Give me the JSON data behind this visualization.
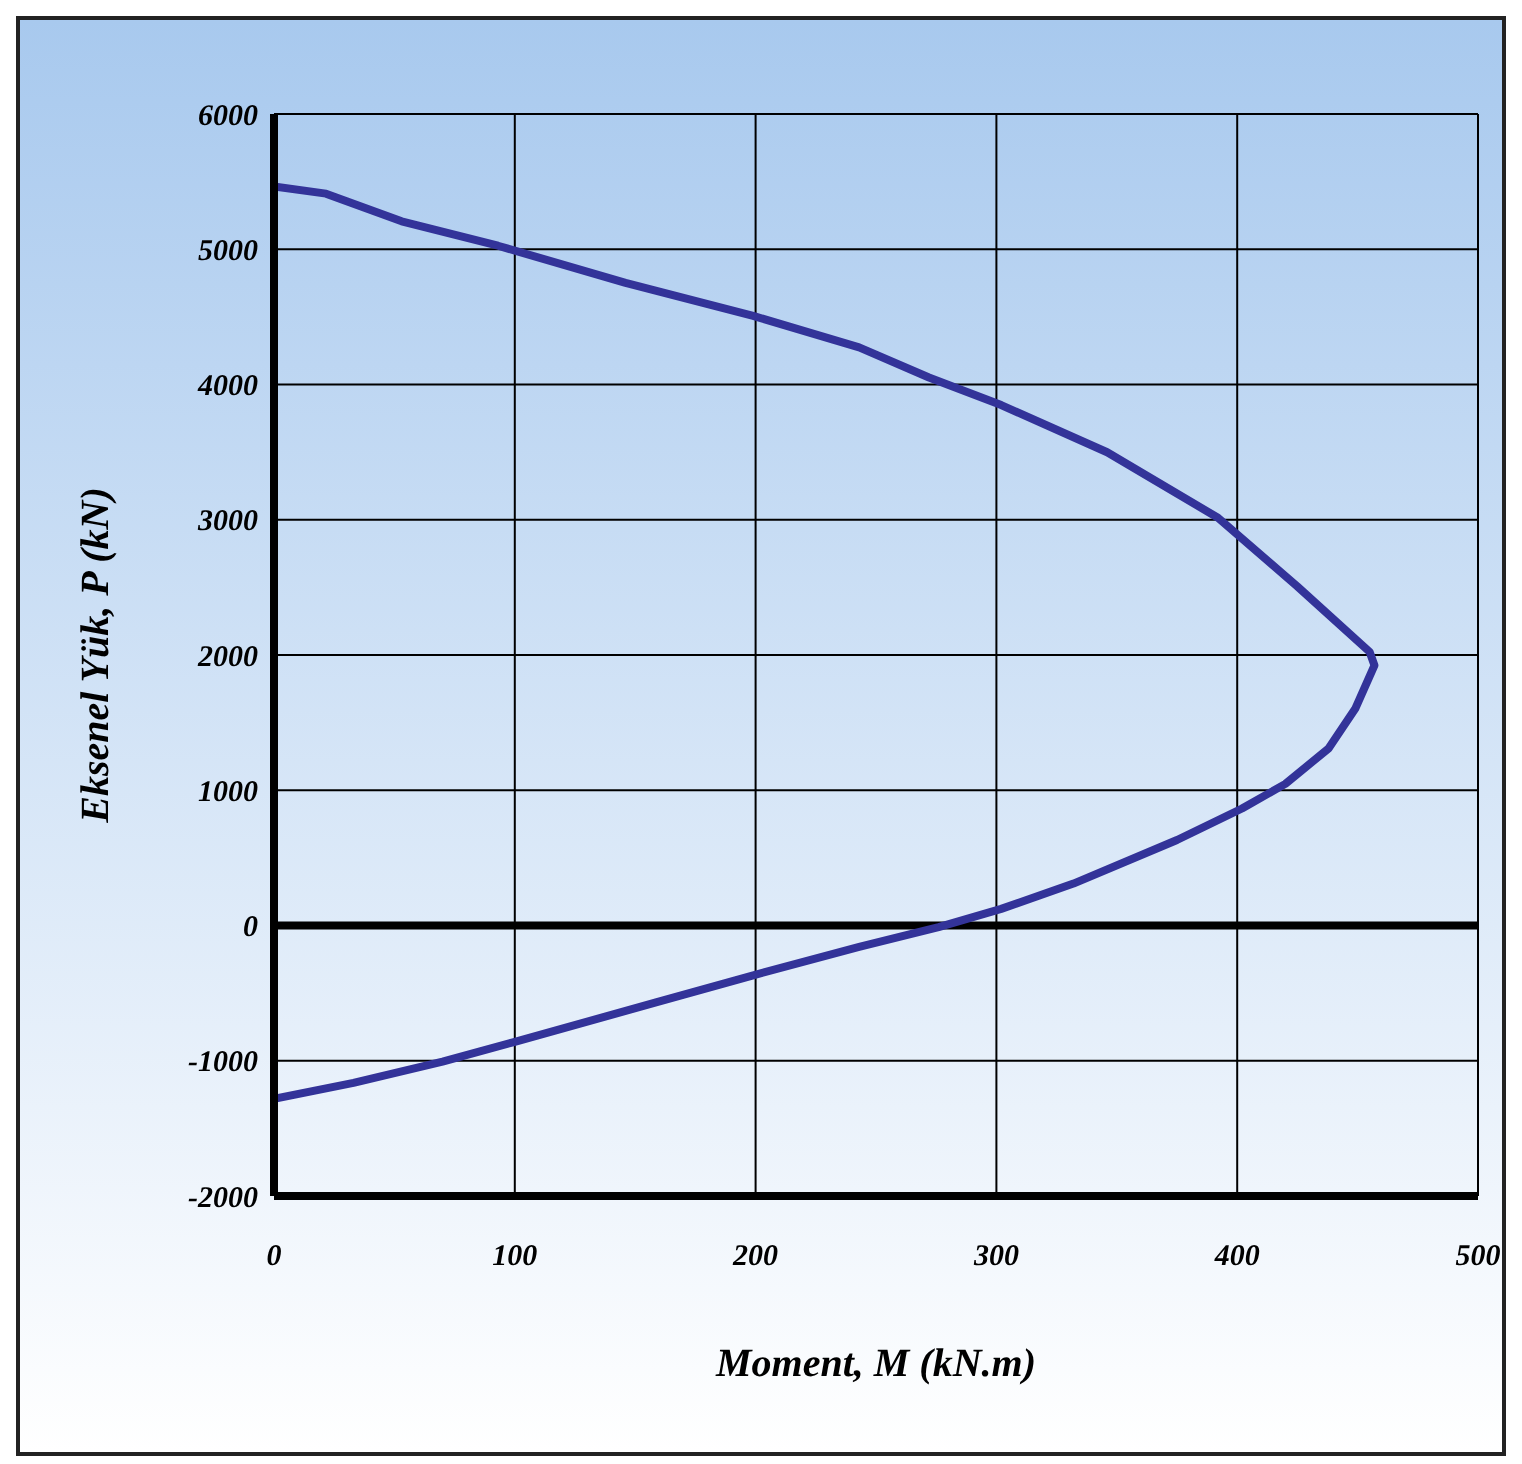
{
  "chart_data": {
    "type": "line",
    "xlabel": "Moment, M (kN.m)",
    "ylabel": "Eksenel Yük, P (kN)",
    "x": [
      0,
      21.6,
      53,
      93,
      146,
      199,
      243,
      272,
      302,
      346,
      392,
      425,
      455,
      457,
      449,
      438,
      420,
      402,
      375,
      332,
      302,
      276,
      243,
      199,
      159,
      100,
      70,
      33,
      0
    ],
    "series": [
      {
        "color": "#333399",
        "values": [
          5464,
          5411,
          5207,
          5026,
          4752,
          4507,
          4274,
          4052,
          3848,
          3499,
          3015,
          2507,
          2023,
          1924,
          1602,
          1310,
          1047,
          865,
          632,
          310,
          123,
          -12,
          -158,
          -368,
          -567,
          -860,
          -1006,
          -1164,
          -1281
        ]
      }
    ],
    "xlim": [
      0,
      500
    ],
    "xticks": [
      0,
      100,
      200,
      300,
      400,
      500
    ],
    "ylim": [
      -2000,
      6000
    ],
    "yticks": [
      -2000,
      -1000,
      0,
      1000,
      2000,
      3000,
      4000,
      5000,
      6000
    ],
    "grid": true,
    "marker": "none",
    "line_style": "solid",
    "ref_lines": [
      {
        "axis": "y",
        "value": 0,
        "color": "#000000"
      }
    ]
  }
}
